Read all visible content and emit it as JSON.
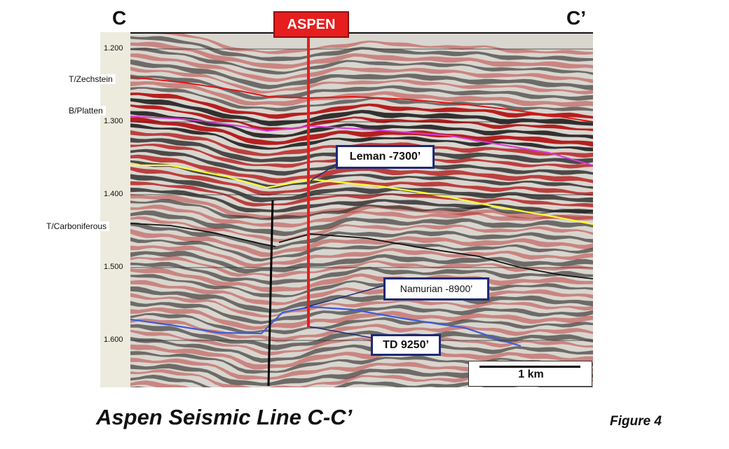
{
  "figure": {
    "left_end_label": "C",
    "right_end_label": "C’",
    "caption": "Aspen Seismic Line C-C’",
    "figure_number": "Figure 4"
  },
  "well": {
    "name": "ASPEN",
    "color": "#e61e1e"
  },
  "time_axis": {
    "ticks": [
      "1.200",
      "1.300",
      "1.400",
      "1.500",
      "1.600"
    ]
  },
  "horizons": [
    {
      "name": "T/Zechstein",
      "color": "#e11515"
    },
    {
      "name": "B/Platten",
      "color": "#d93ad9"
    },
    {
      "name": "T/Carboniferous",
      "color": "#111111"
    }
  ],
  "callouts": {
    "leman": "Leman -7300’",
    "namurian": "Namurian -8900’",
    "td": "TD 9250’"
  },
  "scale_bar": {
    "label": "1 km"
  },
  "colors": {
    "seismic_red": "#b31515",
    "seismic_black": "#141414",
    "leman_horizon": "#ffff33",
    "namurian_horizon": "#3d5bd9",
    "callout_border": "#1e2a73"
  }
}
